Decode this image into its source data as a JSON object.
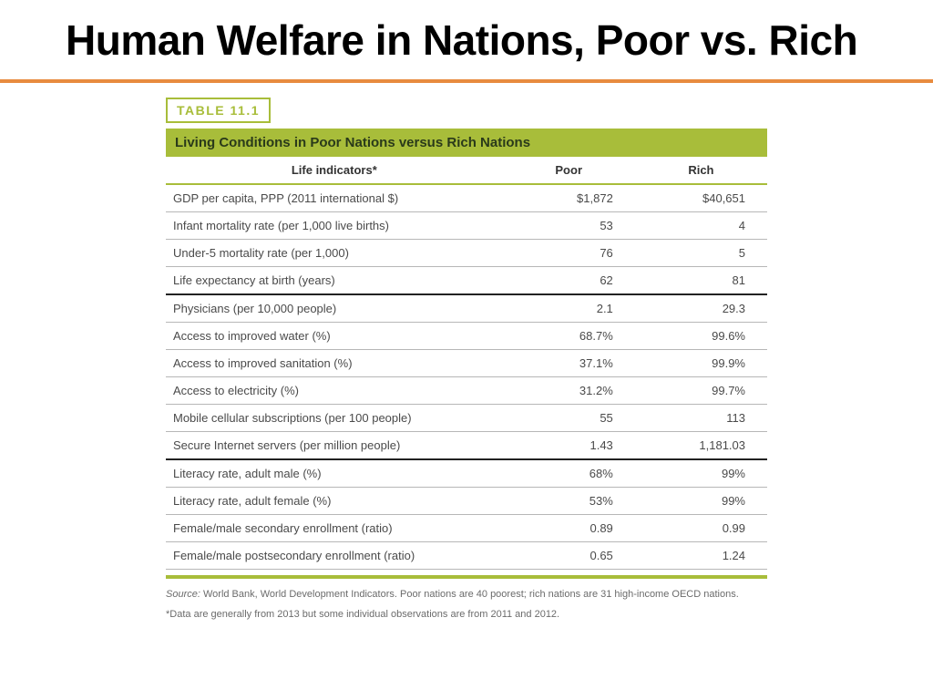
{
  "slide": {
    "title": "Human Welfare in Nations, Poor vs. Rich",
    "rule_color": "#e88b3f"
  },
  "table": {
    "tag": "TABLE 11.1",
    "caption": "Living Conditions in Poor Nations versus Rich Nations",
    "accent_color": "#a8bd3a",
    "columns": [
      "Life indicators*",
      "Poor",
      "Rich"
    ],
    "sections": [
      {
        "rows": [
          {
            "indicator": "GDP per capita, PPP (2011 international $)",
            "poor": "$1,872",
            "rich": "$40,651"
          },
          {
            "indicator": "Infant mortality rate (per 1,000 live births)",
            "poor": "53",
            "rich": "4"
          },
          {
            "indicator": "Under-5 mortality rate (per 1,000)",
            "poor": "76",
            "rich": "5"
          },
          {
            "indicator": "Life expectancy at birth (years)",
            "poor": "62",
            "rich": "81"
          }
        ]
      },
      {
        "rows": [
          {
            "indicator": "Physicians (per 10,000 people)",
            "poor": "2.1",
            "rich": "29.3"
          },
          {
            "indicator": "Access to improved water (%)",
            "poor": "68.7%",
            "rich": "99.6%"
          },
          {
            "indicator": "Access to improved sanitation (%)",
            "poor": "37.1%",
            "rich": "99.9%"
          },
          {
            "indicator": "Access to electricity (%)",
            "poor": "31.2%",
            "rich": "99.7%"
          },
          {
            "indicator": "Mobile cellular subscriptions (per 100 people)",
            "poor": "55",
            "rich": "113"
          },
          {
            "indicator": "Secure Internet servers (per million people)",
            "poor": "1.43",
            "rich": "1,181.03"
          }
        ]
      },
      {
        "rows": [
          {
            "indicator": "Literacy rate, adult male (%)",
            "poor": "68%",
            "rich": "99%"
          },
          {
            "indicator": "Literacy rate, adult female (%)",
            "poor": "53%",
            "rich": "99%"
          },
          {
            "indicator": "Female/male secondary enrollment (ratio)",
            "poor": "0.89",
            "rich": "0.99"
          },
          {
            "indicator": "Female/male postsecondary enrollment (ratio)",
            "poor": "0.65",
            "rich": "1.24"
          }
        ]
      }
    ],
    "source_label": "Source:",
    "source_text": " World Bank, World Development Indicators. Poor nations are 40 poorest; rich nations are 31 high-income OECD nations.",
    "footnote": "*Data are generally from 2013 but some individual observations are from 2011 and 2012."
  }
}
